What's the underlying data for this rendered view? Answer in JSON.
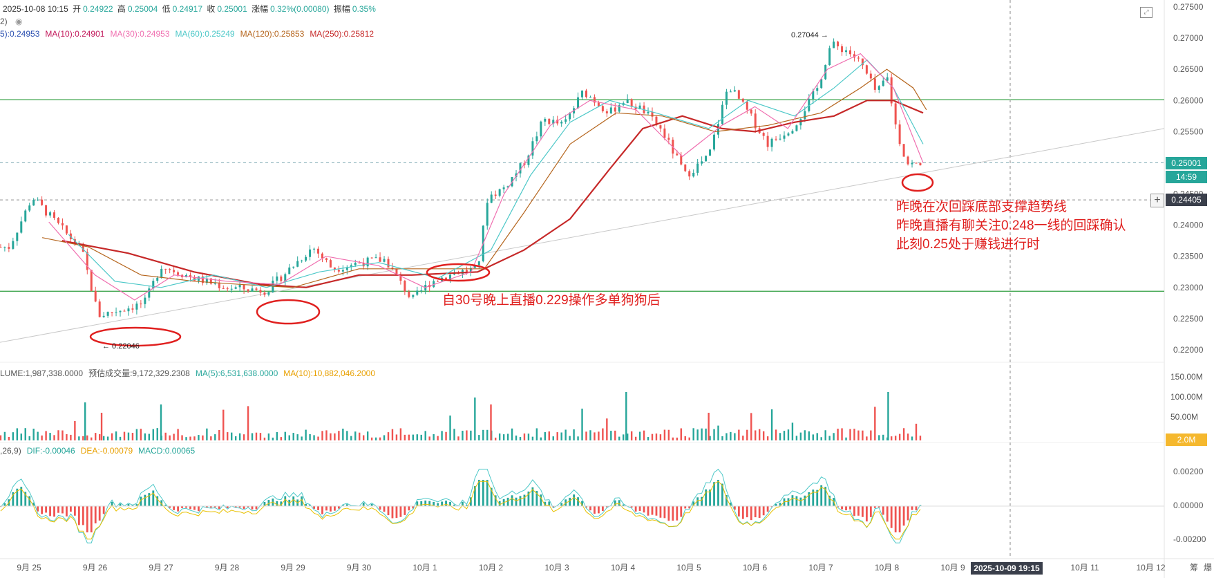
{
  "header": {
    "datetime": "2025-10-08 10:15",
    "open_label": "开",
    "open": "0.24922",
    "high_label": "高",
    "high": "0.25004",
    "low_label": "低",
    "low": "0.24917",
    "close_label": "收",
    "close": "0.25001",
    "change_label": "涨幅",
    "change": "0.32%(0.00080)",
    "amplitude_label": "振幅",
    "amplitude": "0.35%",
    "sub_left": "2)"
  },
  "ma_legend": [
    {
      "label": "5):0.24953",
      "color": "#2a4fb0"
    },
    {
      "label": "MA(10):0.24901",
      "color": "#c2185b"
    },
    {
      "label": "MA(30):0.24953",
      "color": "#f06fb0"
    },
    {
      "label": "MA(60):0.25249",
      "color": "#4dc8c8"
    },
    {
      "label": "MA(120):0.25853",
      "color": "#b5651d"
    },
    {
      "label": "MA(250):0.25812",
      "color": "#c62828"
    }
  ],
  "volume_legend": [
    {
      "label": "LUME:1,987,338.0000",
      "color": "#555555"
    },
    {
      "label": "预估成交量:9,172,329.2308",
      "color": "#555555"
    },
    {
      "label": "MA(5):6,531,638.0000",
      "color": "#26a69a"
    },
    {
      "label": "MA(10):10,882,046.2000",
      "color": "#e8a000"
    }
  ],
  "macd_legend": [
    {
      "label": ",26,9)",
      "color": "#555555"
    },
    {
      "label": "DIF:-0.00046",
      "color": "#26a69a"
    },
    {
      "label": "DEA:-0.00079",
      "color": "#e8a000"
    },
    {
      "label": "MACD:0.00065",
      "color": "#26a69a"
    }
  ],
  "price_tags": {
    "last": "0.25001",
    "countdown": "14:59",
    "crosshair": "0.24405",
    "volume": "2.0M"
  },
  "crosshair_time": "2025-10-09 19:15",
  "annotations": {
    "low_marker": "← 0.22046",
    "high_marker": "0.27044 →",
    "note_mid": "自30号晚上直播0.229操作多单狗狗后",
    "note_right_1": "昨晚在次回踩底部支撑趋势线",
    "note_right_2": "昨晚直播有聊关注0.248一线的回踩确认",
    "note_right_3": "此刻0.25处于赚钱进行时"
  },
  "colors": {
    "up": "#26a69a",
    "down": "#ef5350",
    "ann": "#e0201f",
    "support": "#2e9e3e",
    "trend": "#c8c8c8",
    "tag_blue": "#26a69a",
    "tag_dark": "#3a3f4b",
    "tag_orange": "#f5b82e"
  },
  "chart_data": {
    "type": "line",
    "price_axis": {
      "range": [
        0.22,
        0.275
      ],
      "ticks": [
        "0.27500",
        "0.27000",
        "0.26500",
        "0.26000",
        "0.25500",
        "0.25000",
        "0.24500",
        "0.24000",
        "0.23500",
        "0.23000",
        "0.22500",
        "0.22000"
      ]
    },
    "volume_axis": {
      "ticks": [
        "150.00M",
        "100.00M",
        "50.00M"
      ]
    },
    "macd_axis": {
      "ticks": [
        "0.00200",
        "0.00000",
        "-0.00200"
      ]
    },
    "x_labels": [
      "9月 25",
      "9月 26",
      "9月 27",
      "9月 28",
      "9月 29",
      "9月 30",
      "10月 1",
      "10月 2",
      "10月 3",
      "10月 4",
      "10月 5",
      "10月 6",
      "10月 7",
      "10月 8",
      "10月 9",
      "10月 11",
      "10月 12"
    ],
    "x_label_pos": [
      0,
      1,
      2,
      3,
      4,
      5,
      6,
      7,
      8,
      9,
      10,
      11,
      12,
      13,
      14,
      16,
      17
    ],
    "axis_corner_labels": [
      "筹",
      "爆"
    ],
    "price_points": [
      [
        -0.3,
        0.2365
      ],
      [
        0.05,
        0.2445
      ],
      [
        0.4,
        0.2405
      ],
      [
        0.8,
        0.236
      ],
      [
        1.05,
        0.2255
      ],
      [
        1.4,
        0.2265
      ],
      [
        1.75,
        0.2275
      ],
      [
        2.0,
        0.2335
      ],
      [
        2.5,
        0.2315
      ],
      [
        3.0,
        0.23
      ],
      [
        3.6,
        0.2295
      ],
      [
        4.1,
        0.2345
      ],
      [
        4.3,
        0.2365
      ],
      [
        4.6,
        0.233
      ],
      [
        5.0,
        0.234
      ],
      [
        5.4,
        0.2345
      ],
      [
        5.8,
        0.228
      ],
      [
        6.1,
        0.231
      ],
      [
        6.5,
        0.2325
      ],
      [
        6.8,
        0.233
      ],
      [
        6.95,
        0.2445
      ],
      [
        7.2,
        0.246
      ],
      [
        7.5,
        0.25
      ],
      [
        7.8,
        0.257
      ],
      [
        8.1,
        0.256
      ],
      [
        8.4,
        0.2615
      ],
      [
        8.8,
        0.258
      ],
      [
        9.0,
        0.26
      ],
      [
        9.3,
        0.2585
      ],
      [
        9.6,
        0.255
      ],
      [
        9.95,
        0.248
      ],
      [
        10.3,
        0.251
      ],
      [
        10.6,
        0.2625
      ],
      [
        10.9,
        0.258
      ],
      [
        11.2,
        0.253
      ],
      [
        11.6,
        0.256
      ],
      [
        11.95,
        0.262
      ],
      [
        12.15,
        0.269
      ],
      [
        12.4,
        0.268
      ],
      [
        12.6,
        0.266
      ],
      [
        12.85,
        0.261
      ],
      [
        13.0,
        0.264
      ],
      [
        13.15,
        0.255
      ],
      [
        13.3,
        0.25
      ],
      [
        13.5,
        0.2495
      ]
    ],
    "ma_series": [
      {
        "name": "MA(250)",
        "color": "#c62828",
        "points": [
          [
            0.5,
            0.2375
          ],
          [
            1.5,
            0.2355
          ],
          [
            2.5,
            0.2325
          ],
          [
            3.5,
            0.2305
          ],
          [
            4.2,
            0.23
          ],
          [
            5.0,
            0.232
          ],
          [
            5.8,
            0.232
          ],
          [
            6.8,
            0.2325
          ],
          [
            7.5,
            0.236
          ],
          [
            8.2,
            0.241
          ],
          [
            8.8,
            0.249
          ],
          [
            9.3,
            0.2555
          ],
          [
            9.9,
            0.2575
          ],
          [
            10.5,
            0.2555
          ],
          [
            11.0,
            0.255
          ],
          [
            11.6,
            0.2565
          ],
          [
            12.2,
            0.2575
          ],
          [
            12.7,
            0.26
          ],
          [
            13.1,
            0.26
          ],
          [
            13.55,
            0.258
          ]
        ]
      },
      {
        "name": "MA(120)",
        "color": "#b5651d",
        "points": [
          [
            0.2,
            0.238
          ],
          [
            0.9,
            0.2365
          ],
          [
            1.7,
            0.232
          ],
          [
            2.5,
            0.231
          ],
          [
            3.2,
            0.2305
          ],
          [
            4.0,
            0.23
          ],
          [
            5.0,
            0.233
          ],
          [
            6.0,
            0.233
          ],
          [
            6.9,
            0.233
          ],
          [
            7.5,
            0.242
          ],
          [
            8.2,
            0.253
          ],
          [
            8.9,
            0.258
          ],
          [
            9.6,
            0.2575
          ],
          [
            10.4,
            0.255
          ],
          [
            11.2,
            0.256
          ],
          [
            12.0,
            0.258
          ],
          [
            12.6,
            0.262
          ],
          [
            13.0,
            0.265
          ],
          [
            13.4,
            0.262
          ],
          [
            13.6,
            0.2585
          ]
        ]
      },
      {
        "name": "MA(60)",
        "color": "#4dc8c8",
        "points": [
          [
            0.6,
            0.2385
          ],
          [
            1.3,
            0.231
          ],
          [
            2.0,
            0.23
          ],
          [
            2.8,
            0.232
          ],
          [
            3.6,
            0.23
          ],
          [
            4.4,
            0.2325
          ],
          [
            5.3,
            0.234
          ],
          [
            6.2,
            0.2315
          ],
          [
            7.0,
            0.236
          ],
          [
            7.6,
            0.248
          ],
          [
            8.2,
            0.2565
          ],
          [
            8.8,
            0.26
          ],
          [
            9.5,
            0.258
          ],
          [
            10.3,
            0.2555
          ],
          [
            10.9,
            0.26
          ],
          [
            11.6,
            0.2575
          ],
          [
            12.2,
            0.262
          ],
          [
            12.7,
            0.2665
          ],
          [
            13.1,
            0.262
          ],
          [
            13.55,
            0.253
          ]
        ]
      },
      {
        "name": "MA(30)",
        "color": "#f06fb0",
        "points": [
          [
            0.3,
            0.2405
          ],
          [
            1.0,
            0.232
          ],
          [
            1.6,
            0.228
          ],
          [
            2.2,
            0.232
          ],
          [
            3.0,
            0.231
          ],
          [
            3.8,
            0.2305
          ],
          [
            4.5,
            0.235
          ],
          [
            5.3,
            0.2335
          ],
          [
            6.0,
            0.23
          ],
          [
            6.7,
            0.2325
          ],
          [
            7.2,
            0.245
          ],
          [
            7.9,
            0.256
          ],
          [
            8.5,
            0.26
          ],
          [
            9.2,
            0.2585
          ],
          [
            9.9,
            0.251
          ],
          [
            10.5,
            0.256
          ],
          [
            11.0,
            0.259
          ],
          [
            11.5,
            0.2555
          ],
          [
            12.1,
            0.265
          ],
          [
            12.6,
            0.2675
          ],
          [
            13.1,
            0.262
          ],
          [
            13.55,
            0.25
          ]
        ]
      }
    ],
    "volume_bars_hint": "dense volume histogram with spikes near 9月26, 9月27, 10月2, 10月4, 10月5, 10月8",
    "macd_hint": "DIF/DEA lines oscillating around 0 with green/red histogram"
  }
}
